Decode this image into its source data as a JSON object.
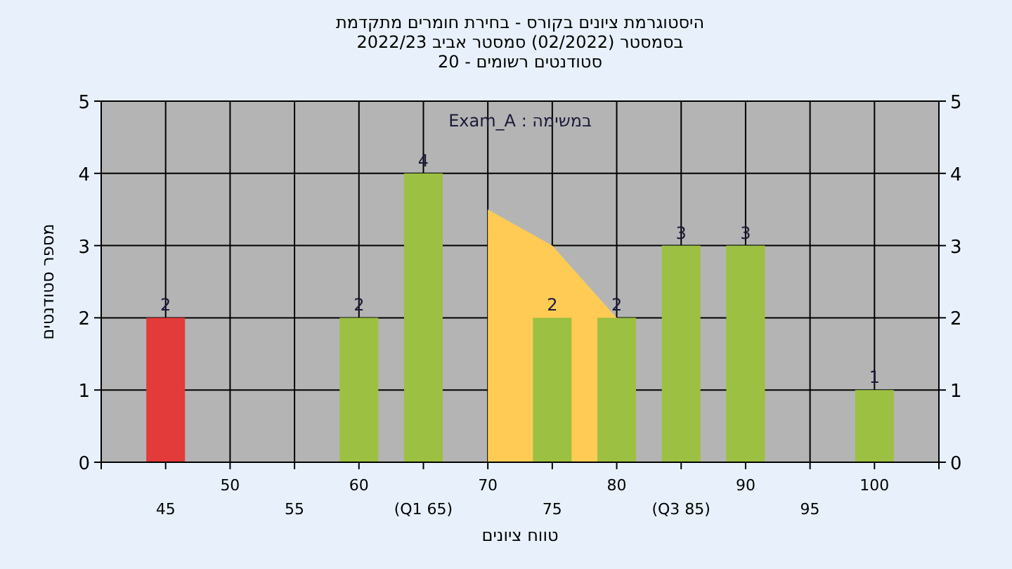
{
  "chart_data": {
    "type": "bar",
    "title": "היסטוגרמת ציונים בקורס - בחירת חומרים מתקדמת",
    "subtitle": "בסמסטר (02/2022) סמסטר אביב 2022/23",
    "annotations": [
      "סטודנטים רשומים - 20",
      "במשימה : Exam_A"
    ],
    "xlabel": "טווח ציונים",
    "ylabel": "מספר סטודנטים",
    "categories": [
      "45",
      "50",
      "55",
      "60",
      "(Q1 65)",
      "70",
      "75",
      "80",
      "(Q3 85)",
      "90",
      "95",
      "100"
    ],
    "series": [
      {
        "type": "area",
        "color": "#ffcb55",
        "values": [
          null,
          null,
          null,
          null,
          null,
          3.5,
          3,
          2,
          null,
          null,
          null,
          null
        ]
      },
      {
        "values": [
          2,
          null,
          null,
          2,
          4,
          null,
          2,
          2,
          3,
          3,
          null,
          1
        ],
        "colors": [
          "#e33a3a",
          null,
          null,
          "#9cc041",
          "#9cc041",
          null,
          "#9cc041",
          "#9cc041",
          "#9cc041",
          "#9cc041",
          null,
          "#9cc041"
        ],
        "value_labels": [
          "2",
          null,
          null,
          "2",
          "4",
          null,
          "2",
          "2",
          "3",
          "3",
          null,
          "1"
        ]
      }
    ],
    "ylim": [
      0,
      5
    ],
    "yticks": [
      0,
      1,
      2,
      3,
      4,
      5
    ],
    "y2lim": [
      0,
      5
    ],
    "y2ticks": [
      0,
      1,
      2,
      3,
      4,
      5
    ],
    "grid": true
  }
}
